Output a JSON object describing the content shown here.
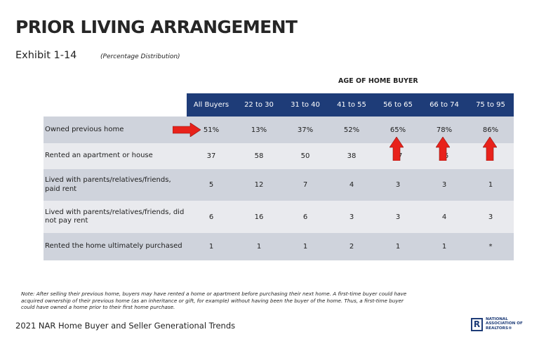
{
  "page": {
    "title": "PRIOR LIVING ARRANGEMENT",
    "exhibit": "Exhibit 1-14",
    "exhibit_sub": "(Percentage Distribution)",
    "age_header": "AGE OF HOME BUYER"
  },
  "table": {
    "columns": [
      "All Buyers",
      "22 to 30",
      "31 to 40",
      "41 to 55",
      "56 to 65",
      "66 to 74",
      "75 to 95"
    ],
    "rows": [
      {
        "label": "Owned previous home",
        "values": [
          "51%",
          "13%",
          "37%",
          "52%",
          "65%",
          "78%",
          "86%"
        ]
      },
      {
        "label": "Rented an apartment or house",
        "values": [
          "37",
          "58",
          "50",
          "38",
          "27",
          "15",
          "9"
        ]
      },
      {
        "label": "Lived with parents/relatives/friends, paid rent",
        "values": [
          "5",
          "12",
          "7",
          "4",
          "3",
          "3",
          "1"
        ]
      },
      {
        "label": "Lived with parents/relatives/friends, did not pay rent",
        "values": [
          "6",
          "16",
          "6",
          "3",
          "3",
          "4",
          "3"
        ]
      },
      {
        "label": "Rented the home ultimately purchased",
        "values": [
          "1",
          "1",
          "1",
          "2",
          "1",
          "1",
          "*"
        ]
      }
    ]
  },
  "note": "Note: After selling their previous home, buyers may have rented a home or apartment before purchasing their next home. A first-time buyer could have acquired ownership of their previous home (as an inheritance or gift, for example) without having been the buyer of the home. Thus, a first-time buyer could have owned a home prior to their first home purchase.",
  "footer": "2021 NAR Home Buyer and Seller Generational Trends",
  "logo": {
    "mark": "R",
    "line1": "NATIONAL",
    "line2": "ASSOCIATION OF",
    "line3": "REALTORS®"
  },
  "annotation_color": "#e8221b",
  "header_color": "#1e3c78"
}
